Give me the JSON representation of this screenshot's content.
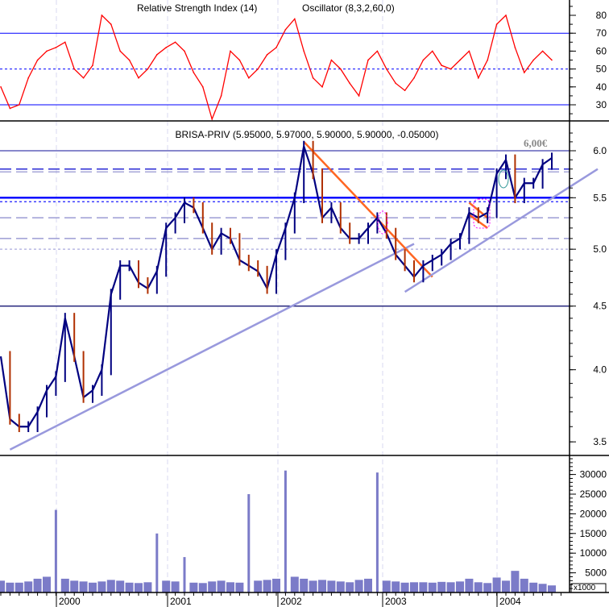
{
  "chart_data": [
    {
      "type": "line",
      "panel": "oscillator",
      "title": "Relative Strength Index (14)",
      "title_overlap": "Oscillator (8,3,2,60,0)",
      "color": "#ff0000",
      "yticks": [
        30,
        40,
        50,
        60,
        70,
        80
      ],
      "ylim": [
        20,
        85
      ],
      "reference_lines": [
        {
          "value": 70,
          "style": "solid",
          "color": "#0000ff"
        },
        {
          "value": 50,
          "style": "dotted",
          "color": "#0000ff"
        },
        {
          "value": 30,
          "style": "solid",
          "color": "#0000ff"
        }
      ],
      "x_start": "1999-07",
      "values": [
        40,
        28,
        30,
        45,
        55,
        60,
        62,
        65,
        50,
        45,
        52,
        80,
        75,
        60,
        55,
        45,
        50,
        58,
        62,
        65,
        60,
        48,
        40,
        22,
        35,
        60,
        55,
        45,
        50,
        58,
        62,
        72,
        78,
        60,
        45,
        40,
        55,
        50,
        42,
        35,
        55,
        60,
        50,
        42,
        38,
        45,
        55,
        60,
        52,
        50,
        55,
        60,
        45,
        55,
        75,
        80,
        62,
        48,
        55,
        60,
        55
      ]
    },
    {
      "type": "line",
      "panel": "price",
      "title": "BRISA-PRIV (5.95000, 5.97000, 5.90000, 5.90000, -0.05000)",
      "scale": "log",
      "color": "#000080",
      "yticks": [
        "3.5",
        "4.0",
        "4.5",
        "5.0",
        "5.5",
        "6.0"
      ],
      "ylim": [
        3.4,
        6.25
      ],
      "x_start": "1999-07",
      "values": [
        4.1,
        3.65,
        3.6,
        3.6,
        3.7,
        3.85,
        3.95,
        4.4,
        4.1,
        3.8,
        3.85,
        4.0,
        4.6,
        4.85,
        4.85,
        4.7,
        4.65,
        4.8,
        5.2,
        5.3,
        5.45,
        5.4,
        5.2,
        5.0,
        5.15,
        5.1,
        4.9,
        4.85,
        4.8,
        4.65,
        4.95,
        5.2,
        5.5,
        6.05,
        5.75,
        5.3,
        5.4,
        5.2,
        5.1,
        5.1,
        5.2,
        5.3,
        5.15,
        4.95,
        4.85,
        4.75,
        4.85,
        4.9,
        4.95,
        5.05,
        5.1,
        5.35,
        5.3,
        5.35,
        5.75,
        5.9,
        5.5,
        5.65,
        5.65,
        5.85,
        5.92
      ],
      "annotation": "6,00€",
      "horizontal_lines": [
        {
          "value": 6.0,
          "style": "solid",
          "color": "#8888cc"
        },
        {
          "value": 5.8,
          "style": "dashed",
          "color": "#0000cc"
        },
        {
          "value": 5.77,
          "style": "dashed",
          "color": "#8888cc"
        },
        {
          "value": 5.5,
          "style": "solid-thick",
          "color": "#0000ff"
        },
        {
          "value": 5.46,
          "style": "dotted",
          "color": "#0000ff"
        },
        {
          "value": 5.3,
          "style": "dashed",
          "color": "#8888cc"
        },
        {
          "value": 5.1,
          "style": "dashed",
          "color": "#8888cc"
        },
        {
          "value": 5.0,
          "style": "dotted",
          "color": "#aaaadd"
        },
        {
          "value": 4.5,
          "style": "solid",
          "color": "#000066"
        }
      ],
      "trendlines": [
        {
          "from": [
            "1999-08",
            3.45
          ],
          "to": [
            "2003-04",
            5.05
          ],
          "color": "#9999dd"
        },
        {
          "from": [
            "2002-04",
            6.1
          ],
          "to": [
            "2003-06",
            4.75
          ],
          "color": "#ff6622"
        },
        {
          "from": [
            "2003-03",
            4.62
          ],
          "to": [
            "2004-12",
            5.8
          ],
          "color": "#9999dd"
        },
        {
          "from": [
            "2003-10",
            5.45
          ],
          "to": [
            "2003-12",
            5.3
          ],
          "color": "#ff6622"
        },
        {
          "from": [
            "2003-10",
            5.33
          ],
          "to": [
            "2003-12",
            5.2
          ],
          "color": "#ff6622"
        }
      ]
    },
    {
      "type": "bar",
      "panel": "volume",
      "unit_label": "x1000",
      "color": "#7b7bc8",
      "yticks": [
        5000,
        10000,
        15000,
        20000,
        25000,
        30000
      ],
      "ylim": [
        0,
        35000
      ],
      "x_start": "1999-07",
      "values": [
        3000,
        2500,
        2500,
        2800,
        3500,
        4000,
        21000,
        3500,
        3000,
        2800,
        2500,
        2800,
        3200,
        3000,
        2500,
        2400,
        2600,
        15000,
        3000,
        2800,
        9000,
        2500,
        2400,
        2800,
        3000,
        2600,
        2500,
        25000,
        3000,
        3200,
        3500,
        31000,
        4000,
        3500,
        3000,
        3200,
        3000,
        2800,
        2600,
        3200,
        3500,
        30500,
        3000,
        2800,
        2500,
        2600,
        2600,
        2500,
        2700,
        2600,
        2800,
        3500,
        2600,
        2400,
        3800,
        3000,
        5500,
        3500,
        2500,
        2200,
        1800
      ]
    },
    {
      "type": "axis",
      "xticks": [
        "2000",
        "2001",
        "2002",
        "2003",
        "2004"
      ]
    }
  ]
}
